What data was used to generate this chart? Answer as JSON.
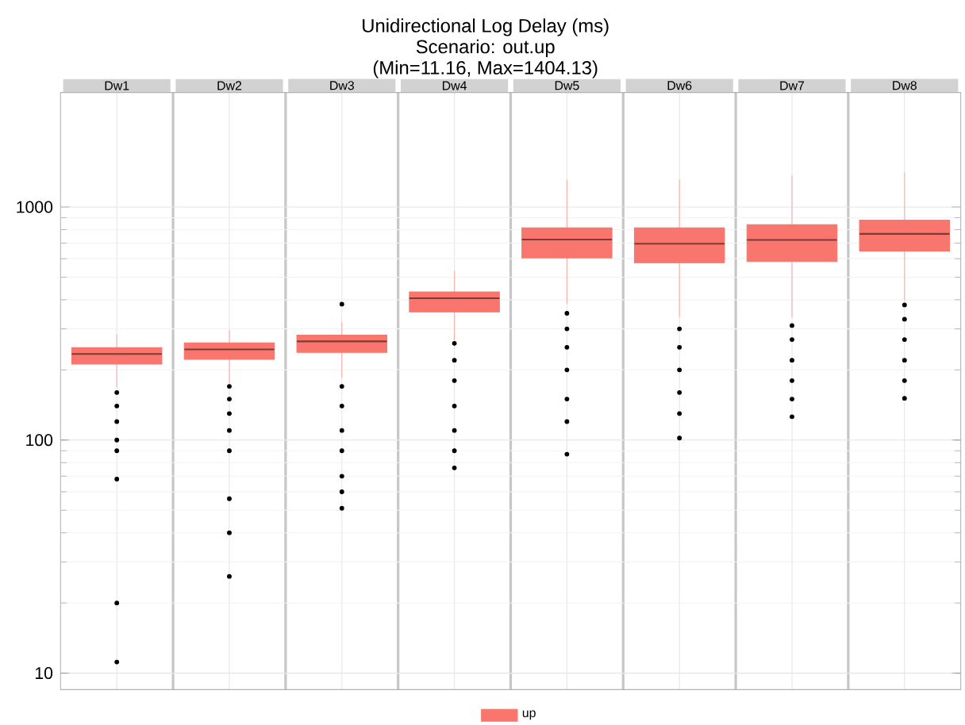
{
  "chart_data": {
    "type": "box",
    "title": "Unidirectional Log Delay (ms)",
    "subtitle": "Scenario:  out.up",
    "annotations": [
      "(Min=11.16, Max=1404.13)"
    ],
    "categories": [
      "Dw1",
      "Dw2",
      "Dw3",
      "Dw4",
      "Dw5",
      "Dw6",
      "Dw7",
      "Dw8"
    ],
    "series": [
      {
        "name": "up",
        "color": "#f8766d",
        "boxes": [
          {
            "low": 168,
            "q1": 212,
            "median": 234,
            "q3": 249,
            "high": 284,
            "outliers": [
              11.16,
              20,
              68,
              90,
              100,
              120,
              140,
              160
            ]
          },
          {
            "low": 175,
            "q1": 222,
            "median": 245,
            "q3": 261,
            "high": 296,
            "outliers": [
              26,
              40,
              56,
              90,
              110,
              130,
              150,
              170
            ]
          },
          {
            "low": 185,
            "q1": 238,
            "median": 265,
            "q3": 282,
            "high": 321,
            "outliers": [
              51,
              60,
              70,
              90,
              110,
              140,
              170,
              383
            ]
          },
          {
            "low": 268,
            "q1": 355,
            "median": 406,
            "q3": 432,
            "high": 531,
            "outliers": [
              76,
              90,
              110,
              140,
              180,
              220,
              260
            ]
          },
          {
            "low": 385,
            "q1": 605,
            "median": 725,
            "q3": 813,
            "high": 1309,
            "outliers": [
              87,
              120,
              150,
              200,
              250,
              300,
              350
            ]
          },
          {
            "low": 338,
            "q1": 577,
            "median": 696,
            "q3": 813,
            "high": 1313,
            "outliers": [
              102,
              130,
              160,
              200,
              250,
              300
            ]
          },
          {
            "low": 338,
            "q1": 583,
            "median": 722,
            "q3": 839,
            "high": 1371,
            "outliers": [
              126,
              150,
              180,
              220,
              270,
              310
            ]
          },
          {
            "low": 399,
            "q1": 647,
            "median": 767,
            "q3": 879,
            "high": 1404.13,
            "outliers": [
              151,
              180,
              220,
              270,
              330,
              380
            ]
          }
        ]
      }
    ],
    "ylim": [
      8.5,
      3100
    ],
    "yticks": [
      10,
      100,
      1000
    ],
    "log": true,
    "grid": true,
    "legend": "bottom"
  }
}
